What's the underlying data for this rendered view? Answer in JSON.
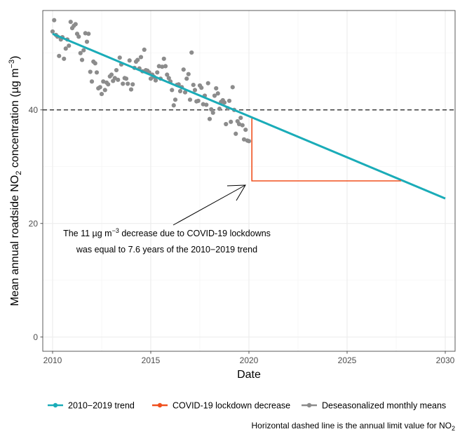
{
  "chart_data": {
    "type": "line",
    "xlabel": "Date",
    "ylabel_prefix": "Mean annual roadside NO",
    "ylabel_sub": "2",
    "ylabel_mid": " concentration (µg m",
    "ylabel_sup": "−3",
    "ylabel_suffix": ")",
    "xlim": [
      2009.5,
      2030.5
    ],
    "ylim": [
      -2.5,
      57.5
    ],
    "x_ticks": [
      2010,
      2015,
      2020,
      2025,
      2030
    ],
    "x_tick_labels": [
      "2010",
      "2015",
      "2020",
      "2025",
      "2030"
    ],
    "y_ticks": [
      0,
      20,
      40
    ],
    "y_tick_labels": [
      "0",
      "20",
      "40"
    ],
    "grid": true,
    "legend_position": "bottom",
    "limit_value": 40,
    "colors": {
      "trend": "#1aacb8",
      "covid": "#f0501e",
      "points": "#8c8c8c",
      "limit": "#1a1a1a"
    },
    "series": [
      {
        "name": "2010−2019 trend",
        "kind": "line",
        "x": [
          2010.0,
          2030.0
        ],
        "y": [
          53.4,
          24.4
        ]
      },
      {
        "name": "COVID-19 lockdown decrease",
        "kind": "step",
        "x": [
          2020.15,
          2020.15,
          2027.75
        ],
        "y": [
          38.5,
          27.5,
          27.5
        ]
      },
      {
        "name": "Deseasonalized monthly means",
        "kind": "scatter",
        "x": [
          2010.0,
          2010.08,
          2010.17,
          2010.25,
          2010.33,
          2010.42,
          2010.5,
          2010.58,
          2010.67,
          2010.75,
          2010.83,
          2010.92,
          2011.0,
          2011.08,
          2011.17,
          2011.25,
          2011.33,
          2011.42,
          2011.5,
          2011.58,
          2011.67,
          2011.75,
          2011.83,
          2011.92,
          2012.0,
          2012.08,
          2012.17,
          2012.25,
          2012.33,
          2012.42,
          2012.5,
          2012.58,
          2012.67,
          2012.75,
          2012.83,
          2012.92,
          2013.0,
          2013.08,
          2013.17,
          2013.25,
          2013.33,
          2013.42,
          2013.5,
          2013.58,
          2013.67,
          2013.75,
          2013.83,
          2013.92,
          2014.0,
          2014.08,
          2014.17,
          2014.25,
          2014.33,
          2014.42,
          2014.5,
          2014.58,
          2014.67,
          2014.75,
          2014.83,
          2014.92,
          2015.0,
          2015.08,
          2015.17,
          2015.25,
          2015.33,
          2015.42,
          2015.5,
          2015.58,
          2015.67,
          2015.75,
          2015.83,
          2015.92,
          2016.0,
          2016.08,
          2016.17,
          2016.25,
          2016.33,
          2016.42,
          2016.5,
          2016.58,
          2016.67,
          2016.75,
          2016.83,
          2016.92,
          2017.0,
          2017.08,
          2017.17,
          2017.25,
          2017.33,
          2017.42,
          2017.5,
          2017.58,
          2017.67,
          2017.75,
          2017.83,
          2017.92,
          2018.0,
          2018.08,
          2018.17,
          2018.25,
          2018.33,
          2018.42,
          2018.5,
          2018.58,
          2018.67,
          2018.75,
          2018.83,
          2018.92,
          2019.0,
          2019.08,
          2019.17,
          2019.25,
          2019.33,
          2019.42,
          2019.5,
          2019.58,
          2019.67,
          2019.75,
          2019.83,
          2019.92
        ],
        "y": [
          53.8,
          55.8,
          53.2,
          52.9,
          49.5,
          52.4,
          52.8,
          49.0,
          50.8,
          52.4,
          51.3,
          55.5,
          54.4,
          54.8,
          55.1,
          53.4,
          52.9,
          50.0,
          48.8,
          50.5,
          53.5,
          52.0,
          53.4,
          46.7,
          45.0,
          48.5,
          48.2,
          46.6,
          43.8,
          44.0,
          42.8,
          45.0,
          43.5,
          44.8,
          44.5,
          45.9,
          46.2,
          45.1,
          45.6,
          47.0,
          45.3,
          49.2,
          48.0,
          44.6,
          45.6,
          45.5,
          44.6,
          48.7,
          43.6,
          44.5,
          47.4,
          48.5,
          48.8,
          47.3,
          49.3,
          46.8,
          50.6,
          47.0,
          46.9,
          46.6,
          45.5,
          46.2,
          45.8,
          45.2,
          46.6,
          47.7,
          45.5,
          47.6,
          49.0,
          47.7,
          46.2,
          45.6,
          45.0,
          43.5,
          40.8,
          41.8,
          44.4,
          44.5,
          43.3,
          44.0,
          47.1,
          43.1,
          45.5,
          46.3,
          41.8,
          50.1,
          44.4,
          43.5,
          41.5,
          41.6,
          44.3,
          43.9,
          41.0,
          42.5,
          40.9,
          44.7,
          38.4,
          40.1,
          39.5,
          42.5,
          43.8,
          42.9,
          40.2,
          41.4,
          41.7,
          41.3,
          37.5,
          40.3,
          41.6,
          37.9,
          44.0,
          40.0,
          35.8,
          38.0,
          37.5,
          38.6,
          37.3,
          34.8,
          36.5,
          34.6
        ]
      }
    ],
    "extra_points": {
      "x": [
        2020.0
      ],
      "y": [
        34.5
      ]
    },
    "annotation": {
      "line1_prefix": "The 11 µg m",
      "line1_sup": "−3",
      "line1_suffix": " decrease due to COVID-19 lockdowns",
      "line2": "was equal to 7.6 years of the 2010−2019 trend"
    },
    "caption_prefix": "Horizontal dashed line is the annual limit value for NO",
    "caption_sub": "2"
  }
}
